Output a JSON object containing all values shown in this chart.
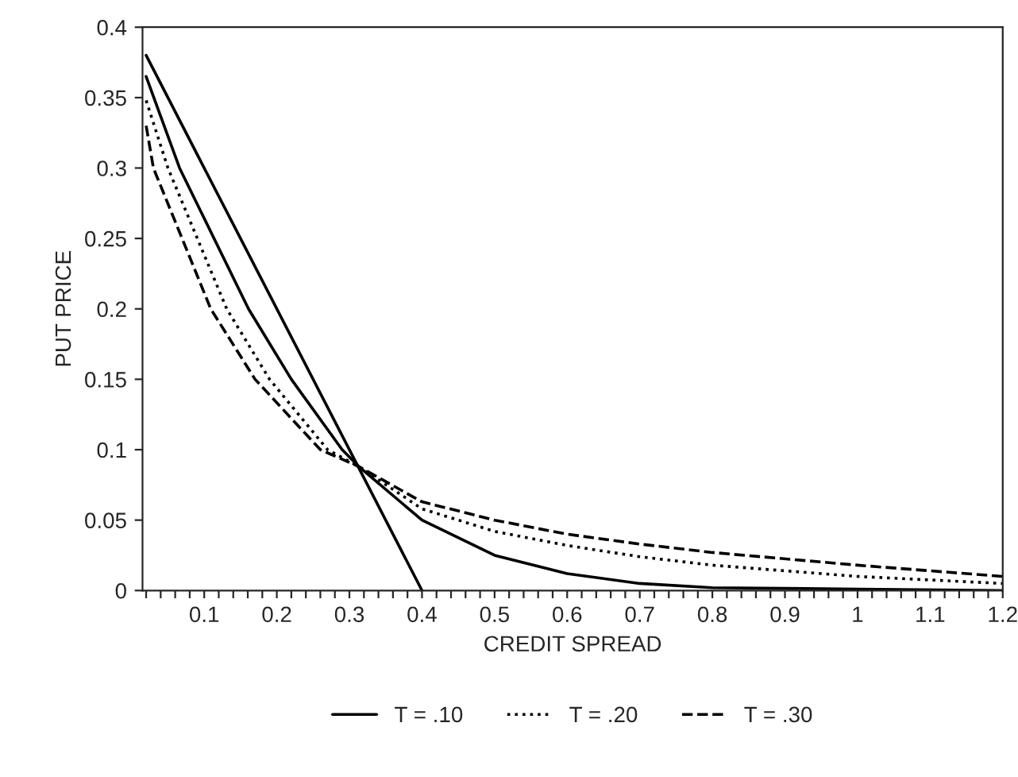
{
  "chart_data": {
    "type": "line",
    "xlabel": "CREDIT SPREAD",
    "ylabel": "PUT PRICE",
    "xlim": [
      0.015,
      1.2
    ],
    "ylim": [
      0,
      0.4
    ],
    "xticks": [
      {
        "value": 0.02,
        "label": null
      },
      {
        "value": 0.04,
        "label": null
      },
      {
        "value": 0.06,
        "label": null
      },
      {
        "value": 0.08,
        "label": null
      },
      0.1,
      {
        "value": 0.12,
        "label": null
      },
      {
        "value": 0.14,
        "label": null
      },
      {
        "value": 0.16,
        "label": null
      },
      {
        "value": 0.18,
        "label": null
      },
      0.2,
      {
        "value": 0.22,
        "label": null
      },
      {
        "value": 0.24,
        "label": null
      },
      {
        "value": 0.26,
        "label": null
      },
      {
        "value": 0.28,
        "label": null
      },
      0.3,
      {
        "value": 0.32,
        "label": null
      },
      {
        "value": 0.34,
        "label": null
      },
      {
        "value": 0.36,
        "label": null
      },
      {
        "value": 0.38,
        "label": null
      },
      0.4,
      {
        "value": 0.42,
        "label": null
      },
      {
        "value": 0.44,
        "label": null
      },
      {
        "value": 0.46,
        "label": null
      },
      {
        "value": 0.48,
        "label": null
      },
      0.5,
      {
        "value": 0.52,
        "label": null
      },
      {
        "value": 0.54,
        "label": null
      },
      {
        "value": 0.56,
        "label": null
      },
      {
        "value": 0.58,
        "label": null
      },
      0.6,
      {
        "value": 0.62,
        "label": null
      },
      {
        "value": 0.64,
        "label": null
      },
      {
        "value": 0.66,
        "label": null
      },
      {
        "value": 0.68,
        "label": null
      },
      0.7,
      {
        "value": 0.72,
        "label": null
      },
      {
        "value": 0.74,
        "label": null
      },
      {
        "value": 0.76,
        "label": null
      },
      {
        "value": 0.78,
        "label": null
      },
      0.8,
      {
        "value": 0.82,
        "label": null
      },
      {
        "value": 0.84,
        "label": null
      },
      {
        "value": 0.86,
        "label": null
      },
      {
        "value": 0.88,
        "label": null
      },
      0.9,
      {
        "value": 0.92,
        "label": null
      },
      {
        "value": 0.94,
        "label": null
      },
      {
        "value": 0.96,
        "label": null
      },
      {
        "value": 0.98,
        "label": null
      },
      1,
      {
        "value": 1.02,
        "label": null
      },
      {
        "value": 1.04,
        "label": null
      },
      {
        "value": 1.06,
        "label": null
      },
      {
        "value": 1.08,
        "label": null
      },
      1.1,
      {
        "value": 1.12,
        "label": null
      },
      {
        "value": 1.14,
        "label": null
      },
      {
        "value": 1.16,
        "label": null
      },
      {
        "value": 1.18,
        "label": null
      },
      1.2
    ],
    "yticks": [
      0,
      0.05,
      0.1,
      0.15,
      0.2,
      0.25,
      0.3,
      0.35,
      0.4
    ],
    "grid": false,
    "legend": "bottom",
    "series": [
      {
        "color": "#000000",
        "line_style": "solid",
        "x": [
          0.02,
          0.4
        ],
        "values": [
          0.38,
          0
        ]
      },
      {
        "name": "T = .10",
        "color": "#000000",
        "line_style": "solid",
        "x": [
          0.02,
          0.066,
          0.161,
          0.22,
          0.29,
          0.313,
          0.4,
          0.5,
          0.6,
          0.7,
          0.8,
          1.0,
          1.2
        ],
        "values": [
          0.365,
          0.3,
          0.2,
          0.15,
          0.1,
          0.088,
          0.05,
          0.025,
          0.012,
          0.005,
          0.002,
          0.001,
          0
        ]
      },
      {
        "name": "T = .20",
        "color": "#000000",
        "line_style": "dotted",
        "x": [
          0.02,
          0.05,
          0.131,
          0.19,
          0.27,
          0.313,
          0.4,
          0.5,
          0.6,
          0.7,
          0.8,
          1.0,
          1.2
        ],
        "values": [
          0.348,
          0.3,
          0.2,
          0.15,
          0.1,
          0.088,
          0.058,
          0.042,
          0.032,
          0.024,
          0.018,
          0.01,
          0.005
        ]
      },
      {
        "name": "T = .30",
        "color": "#000000",
        "line_style": "dashed",
        "x": [
          0.02,
          0.03,
          0.109,
          0.17,
          0.26,
          0.313,
          0.4,
          0.5,
          0.6,
          0.7,
          0.8,
          1.0,
          1.2
        ],
        "values": [
          0.33,
          0.3,
          0.2,
          0.15,
          0.1,
          0.088,
          0.063,
          0.05,
          0.04,
          0.033,
          0.027,
          0.018,
          0.01
        ]
      }
    ]
  }
}
